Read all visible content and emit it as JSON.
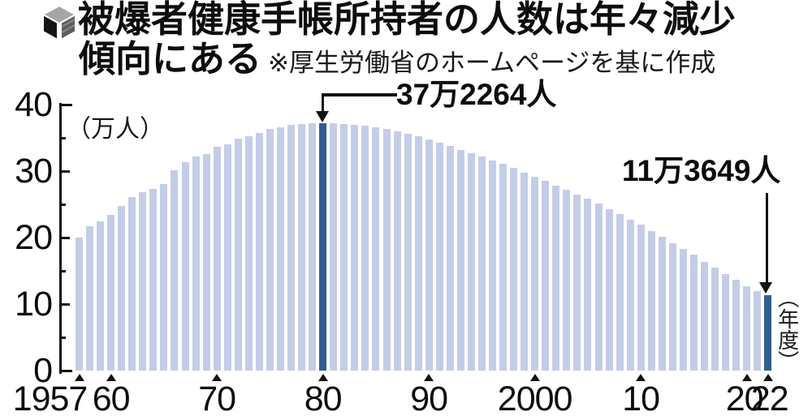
{
  "header": {
    "icon": "cube-icon",
    "title_line1": "被爆者健康手帳所持者の人数は年々減少",
    "title_line2": "傾向にある",
    "source_note": "※厚生労働省のホームページを基に作成"
  },
  "chart_data": {
    "type": "bar",
    "title": "被爆者健康手帳所持者の人数は年々減少傾向にある",
    "source_note": "※厚生労働省のホームページを基に作成",
    "ylabel": "（万人）",
    "xlabel": "（年度）",
    "unit": "万人 (10,000 persons)",
    "ylim": [
      0,
      40
    ],
    "y_major_ticks": [
      0,
      10,
      20,
      30,
      40
    ],
    "y_minor_ticks": [
      5,
      15,
      25,
      35
    ],
    "grid": false,
    "legend": false,
    "bar_color": "#c4cde7",
    "highlight_color": "#2f5f8f",
    "text_color": "#0d0d0d",
    "categories": [
      1957,
      1958,
      1959,
      1960,
      1961,
      1962,
      1963,
      1964,
      1965,
      1966,
      1967,
      1968,
      1969,
      1970,
      1971,
      1972,
      1973,
      1974,
      1975,
      1976,
      1977,
      1978,
      1979,
      1980,
      1981,
      1982,
      1983,
      1984,
      1985,
      1986,
      1987,
      1988,
      1989,
      1990,
      1991,
      1992,
      1993,
      1994,
      1995,
      1996,
      1997,
      1998,
      1999,
      2000,
      2001,
      2002,
      2003,
      2004,
      2005,
      2006,
      2007,
      2008,
      2009,
      2010,
      2011,
      2012,
      2013,
      2014,
      2015,
      2016,
      2017,
      2018,
      2019,
      2020,
      2021,
      2022
    ],
    "values": [
      20.0,
      21.7,
      22.5,
      23.4,
      24.7,
      26.1,
      26.8,
      27.3,
      28.0,
      30.1,
      31.3,
      32.2,
      32.5,
      33.6,
      34.0,
      34.9,
      35.2,
      35.7,
      36.3,
      36.6,
      36.9,
      37.1,
      37.2,
      37.2264,
      37.2,
      37.1,
      37.0,
      36.8,
      36.6,
      36.4,
      36.0,
      35.6,
      35.2,
      34.8,
      34.3,
      33.8,
      33.2,
      32.7,
      32.2,
      31.6,
      31.1,
      30.5,
      29.8,
      29.1,
      28.5,
      27.8,
      27.2,
      26.5,
      25.9,
      25.1,
      24.3,
      23.5,
      22.7,
      21.9,
      21.0,
      20.1,
      19.2,
      18.3,
      17.4,
      16.4,
      15.5,
      14.5,
      13.6,
      12.7,
      11.9,
      11.3649
    ],
    "highlight_years": [
      1980,
      2022
    ],
    "x_markers": [
      {
        "year": 1957,
        "label": "1957",
        "dx": -36
      },
      {
        "year": 1960,
        "label": "60",
        "dx": 0
      },
      {
        "year": 1970,
        "label": "70",
        "dx": 0
      },
      {
        "year": 1980,
        "label": "80",
        "dx": 0
      },
      {
        "year": 1990,
        "label": "90",
        "dx": 0
      },
      {
        "year": 2000,
        "label": "2000",
        "dx": 0
      },
      {
        "year": 2010,
        "label": "10",
        "dx": 0
      },
      {
        "year": 2020,
        "label": "20",
        "dx": -3
      },
      {
        "year": 2022,
        "label": "22",
        "dx": 2
      }
    ],
    "annotations": [
      {
        "year": 1980,
        "label": "37万2264人",
        "value_persons": 372264
      },
      {
        "year": 2022,
        "label": "11万3649人",
        "value_persons": 113649
      }
    ]
  }
}
